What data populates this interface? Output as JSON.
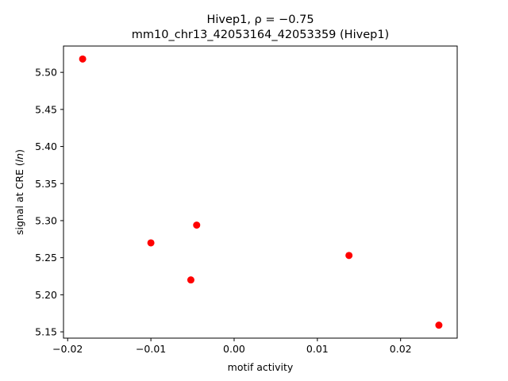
{
  "chart_data": {
    "type": "scatter",
    "title": "Hivep1, ρ = −0.75",
    "subtitle": "mm10_chr13_42053164_42053359 (Hivep1)",
    "xlabel": "motif activity",
    "ylabel": "signal at CRE (ln)",
    "xlim": [
      -0.0205,
      0.0268
    ],
    "ylim": [
      5.1415,
      5.5355
    ],
    "x_ticks": [
      -0.02,
      -0.01,
      0.0,
      0.01,
      0.02
    ],
    "x_tick_labels": [
      "−0.02",
      "−0.01",
      "0.00",
      "0.01",
      "0.02"
    ],
    "y_ticks": [
      5.15,
      5.2,
      5.25,
      5.3,
      5.35,
      5.4,
      5.45,
      5.5
    ],
    "y_tick_labels": [
      "5.15",
      "5.20",
      "5.25",
      "5.30",
      "5.35",
      "5.40",
      "5.45",
      "5.50"
    ],
    "grid": false,
    "marker_color": "#ff0000",
    "points": [
      {
        "x": -0.0182,
        "y": 5.518
      },
      {
        "x": -0.01,
        "y": 5.27
      },
      {
        "x": -0.0045,
        "y": 5.294
      },
      {
        "x": -0.0052,
        "y": 5.22
      },
      {
        "x": 0.0138,
        "y": 5.253
      },
      {
        "x": 0.0246,
        "y": 5.159
      }
    ]
  }
}
